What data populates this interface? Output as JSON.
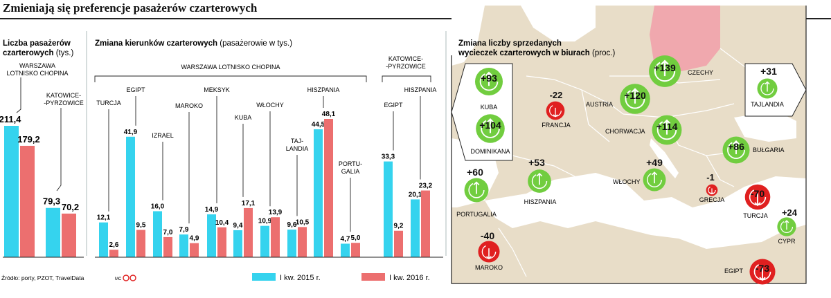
{
  "title": "Zmieniają się preferencje pasażerów czarterowych",
  "colors": {
    "series2015": "#35d3ee",
    "series2016": "#ec6f6f",
    "green": "#71cd3f",
    "red": "#e02020",
    "map_land": "#e8ddc8",
    "map_sea": "#ffffff",
    "map_poland": "#f0a8ae"
  },
  "panel1": {
    "title_bold": "Liczba pasażerów czarterowych",
    "title_unit": "(tys.)",
    "label_waw": "WARSZAWA LOTNISKO CHOPINA",
    "label_ktw": "KATOWICE- -PYRZOWICE"
  },
  "panel2": {
    "title_bold": "Zmiana kierunków czarterowych",
    "title_unit": "(pasażerowie w tys.)",
    "group_waw": "WARSZAWA LOTNISKO CHOPINA",
    "group_ktw": "KATOWICE- -PYRZOWICE"
  },
  "panel3": {
    "title": "Zmiana liczby sprzedanych wycieczek czarterowych w biurach",
    "unit": "(proc.)"
  },
  "legend": {
    "s2015": "I kw. 2015 r.",
    "s2016": "I kw. 2016 r."
  },
  "source": "Źródło: porty, PZOT, TravelData",
  "logo_text": "MC",
  "chart_data": [
    {
      "type": "bar",
      "title": "Liczba pasażerów czarterowych (tys.)",
      "categories": [
        "WARSZAWA LOTNISKO CHOPINA",
        "KATOWICE-PYRZOWICE"
      ],
      "series": [
        {
          "name": "I kw. 2015 r.",
          "values": [
            211.4,
            79.3
          ],
          "labels": [
            "211,4",
            "79,3"
          ]
        },
        {
          "name": "I kw. 2016 r.",
          "values": [
            179.2,
            70.2
          ],
          "labels": [
            "179,2",
            "70,2"
          ]
        }
      ]
    },
    {
      "type": "bar",
      "title": "Zmiana kierunków czarterowych (pasażerowie w tys.)",
      "groups": [
        "WARSZAWA LOTNISKO CHOPINA",
        "KATOWICE-PYRZOWICE"
      ],
      "categories": [
        "TURCJA",
        "EGIPT",
        "IZRAEL",
        "MAROKO",
        "MEKSYK",
        "KUBA",
        "WŁOCHY",
        "TAJ- LANDIA",
        "HISZPANIA",
        "PORTU- GALIA",
        "EGIPT",
        "HISZPANIA"
      ],
      "series": [
        {
          "name": "I kw. 2015 r.",
          "values": [
            12.1,
            41.9,
            16.0,
            7.9,
            14.9,
            9.4,
            10.9,
            9.6,
            44.5,
            4.7,
            33.3,
            20.1
          ],
          "labels": [
            "12,1",
            "41,9",
            "16,0",
            "7,9",
            "14,9",
            "9,4",
            "10,9",
            "9,6",
            "44,5",
            "4,7",
            "33,3",
            "20,1"
          ]
        },
        {
          "name": "I kw. 2016 r.",
          "values": [
            2.6,
            9.5,
            7.0,
            4.9,
            10.4,
            17.1,
            13.9,
            10.5,
            48.1,
            5.0,
            9.2,
            23.2
          ],
          "labels": [
            "2,6",
            "9,5",
            "7,0",
            "4,9",
            "10,4",
            "17,1",
            "13,9",
            "10,5",
            "48,1",
            "5,0",
            "9,2",
            "23,2"
          ]
        }
      ]
    },
    {
      "type": "map",
      "title": "Zmiana liczby sprzedanych wycieczek czarterowych w biurach (proc.)",
      "points": [
        {
          "name": "KUBA",
          "value": 93,
          "label": "+93"
        },
        {
          "name": "DOMINIKANA",
          "value": 104,
          "label": "+104"
        },
        {
          "name": "FRANCJA",
          "value": -22,
          "label": "-22"
        },
        {
          "name": "CZECHY",
          "value": 139,
          "label": "+139"
        },
        {
          "name": "AUSTRIA",
          "value": 120,
          "label": "+120"
        },
        {
          "name": "CHORWACJA",
          "value": 114,
          "label": "+114"
        },
        {
          "name": "TAJLANDIA",
          "value": 31,
          "label": "+31"
        },
        {
          "name": "BUŁGARIA",
          "value": 86,
          "label": "+86"
        },
        {
          "name": "PORTUGALIA",
          "value": 60,
          "label": "+60"
        },
        {
          "name": "HISZPANIA",
          "value": 53,
          "label": "+53"
        },
        {
          "name": "WŁOCHY",
          "value": 49,
          "label": "+49"
        },
        {
          "name": "GRECJA",
          "value": -1,
          "label": "-1"
        },
        {
          "name": "TURCJA",
          "value": -70,
          "label": "-70"
        },
        {
          "name": "CYPR",
          "value": 24,
          "label": "+24"
        },
        {
          "name": "MAROKO",
          "value": -40,
          "label": "-40"
        },
        {
          "name": "EGIPT",
          "value": -73,
          "label": "-73"
        }
      ]
    }
  ]
}
